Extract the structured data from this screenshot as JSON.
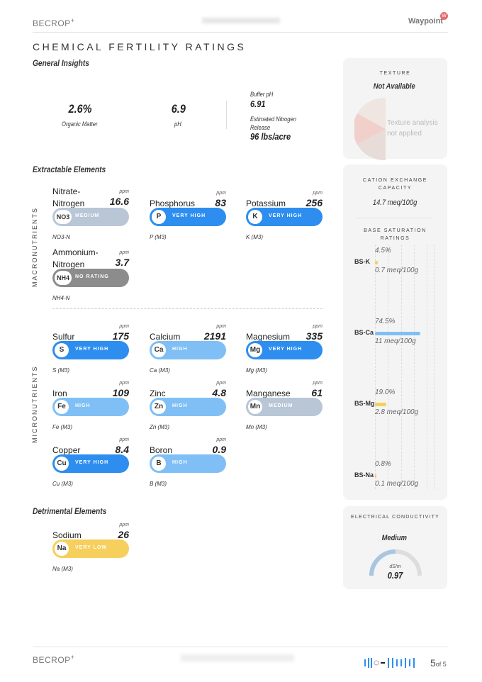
{
  "header": {
    "brand": "BECROP",
    "brand_sup": "+",
    "partner": "Waypoint"
  },
  "title": "CHEMICAL FERTILITY RATINGS",
  "general": {
    "heading": "General Insights",
    "organic_matter": {
      "value": "2.6%",
      "label": "Organic Matter"
    },
    "ph": {
      "value": "6.9",
      "label": "pH"
    },
    "buffer_ph": {
      "label": "Buffer pH",
      "value": "6.91"
    },
    "nitrogen_release": {
      "label": "Estimated Nitrogen Release",
      "value": "96 lbs/acre"
    }
  },
  "texture": {
    "heading": "TEXTURE",
    "value": "Not Available",
    "note": "Texture analysis not applied"
  },
  "extractable": {
    "heading": "Extractable Elements",
    "macro_label": "MACRONUTRIENTS",
    "micro_label": "MICRONUTRIENTS",
    "elements": [
      {
        "name": "Nitrate-Nitrogen",
        "value": "16.6",
        "unit": "ppm",
        "symbol": "NO3",
        "rating": "MEDIUM",
        "method": "NO3-N"
      },
      {
        "name": "Phosphorus",
        "value": "83",
        "unit": "ppm",
        "symbol": "P",
        "rating": "VERY HIGH",
        "method": "P (M3)"
      },
      {
        "name": "Potassium",
        "value": "256",
        "unit": "ppm",
        "symbol": "K",
        "rating": "VERY HIGH",
        "method": "K (M3)"
      },
      {
        "name": "Ammonium-Nitrogen",
        "value": "3.7",
        "unit": "ppm",
        "symbol": "NH4",
        "rating": "NO RATING",
        "method": "NH4-N"
      },
      {
        "name": "Sulfur",
        "value": "175",
        "unit": "ppm",
        "symbol": "S",
        "rating": "VERY HIGH",
        "method": "S (M3)"
      },
      {
        "name": "Calcium",
        "value": "2191",
        "unit": "ppm",
        "symbol": "Ca",
        "rating": "HIGH",
        "method": "Ca (M3)"
      },
      {
        "name": "Magnesium",
        "value": "335",
        "unit": "ppm",
        "symbol": "Mg",
        "rating": "VERY HIGH",
        "method": "Mg (M3)"
      },
      {
        "name": "Iron",
        "value": "109",
        "unit": "ppm",
        "symbol": "Fe",
        "rating": "HIGH",
        "method": "Fe (M3)"
      },
      {
        "name": "Zinc",
        "value": "4.8",
        "unit": "ppm",
        "symbol": "Zn",
        "rating": "HIGH",
        "method": "Zn (M3)"
      },
      {
        "name": "Manganese",
        "value": "61",
        "unit": "ppm",
        "symbol": "Mn",
        "rating": "MEDIUM",
        "method": "Mn (M3)"
      },
      {
        "name": "Copper",
        "value": "8.4",
        "unit": "ppm",
        "symbol": "Cu",
        "rating": "VERY HIGH",
        "method": "Cu (M3)"
      },
      {
        "name": "Boron",
        "value": "0.9",
        "unit": "ppm",
        "symbol": "B",
        "rating": "HIGH",
        "method": "B (M3)"
      }
    ]
  },
  "detrimental": {
    "heading": "Detrimental Elements",
    "elements": [
      {
        "name": "Sodium",
        "value": "26",
        "unit": "ppm",
        "symbol": "Na",
        "rating": "VERY LOW",
        "method": "Na (M3)"
      }
    ]
  },
  "rating_colors": {
    "VERY HIGH": "#2d8ef0",
    "HIGH": "#80bff5",
    "MEDIUM": "#b8c6d6",
    "NO RATING": "#8c8c8c",
    "VERY LOW": "#f6cf5c"
  },
  "cec": {
    "heading": "CATION EXCHANGE CAPACITY",
    "value": "14.7 meq/100g",
    "bs_heading": "BASE SATURATION RATINGS",
    "bars": [
      {
        "label": "BS-K",
        "percent": 4.5,
        "percent_text": "4.5%",
        "meq": "0.7 meq/100g",
        "color": "#f6cf5c"
      },
      {
        "label": "BS-Ca",
        "percent": 74.5,
        "percent_text": "74.5%",
        "meq": "11 meq/100g",
        "color": "#80bff5"
      },
      {
        "label": "BS-Mg",
        "percent": 19.0,
        "percent_text": "19.0%",
        "meq": "2.8 meq/100g",
        "color": "#f6cf5c"
      },
      {
        "label": "BS-Na",
        "percent": 0.8,
        "percent_text": "0.8%",
        "meq": "0.1 meq/100g",
        "color": "#f6cf5c"
      }
    ]
  },
  "ec": {
    "heading": "ELECTRICAL CONDUCTIVITY",
    "rating": "Medium",
    "unit": "dS/m",
    "value": "0.97"
  },
  "footer": {
    "brand": "BECROP",
    "brand_sup": "+",
    "page": "5",
    "of": "of 5"
  }
}
